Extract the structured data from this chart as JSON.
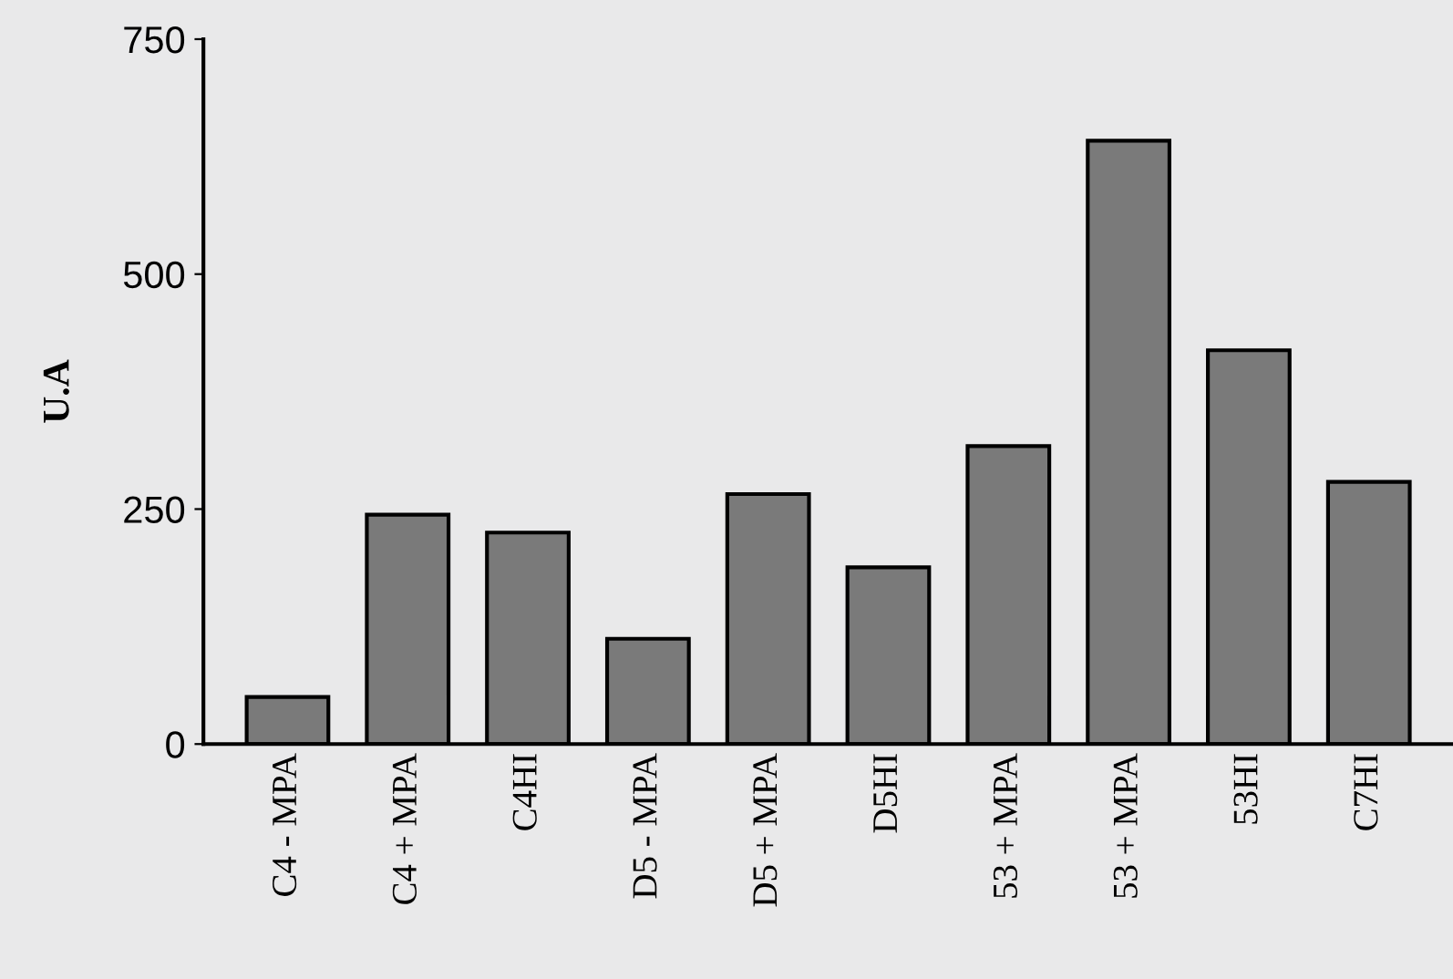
{
  "chart_data": {
    "type": "bar",
    "ylabel": "U.A",
    "categories": [
      "C4 - MPA",
      "C4 + MPA",
      "C4HI",
      "D5 - MPA",
      "D5 + MPA",
      "D5HI",
      "53 + MPA",
      "53 + MPA",
      "53HI",
      "C7HI"
    ],
    "values": [
      50,
      244,
      225,
      112,
      266,
      188,
      317,
      642,
      419,
      279
    ],
    "color": "#7a7a7a",
    "ylim": [
      0,
      750
    ],
    "yticks": [
      0,
      250,
      500,
      750
    ],
    "grid": false
  }
}
